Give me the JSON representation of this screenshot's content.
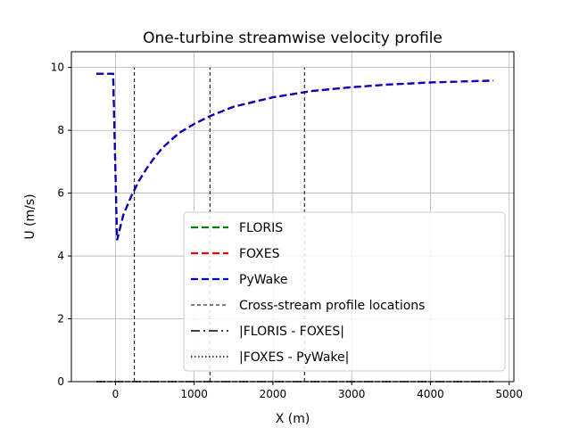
{
  "chart_data": {
    "type": "line",
    "title": "One-turbine streamwise velocity profile",
    "xlabel": "X (m)",
    "ylabel": "U (m/s)",
    "xlim": [
      -560,
      5060
    ],
    "ylim": [
      0,
      10.5
    ],
    "xticks": [
      0,
      1000,
      2000,
      3000,
      4000,
      5000
    ],
    "yticks": [
      0,
      2,
      4,
      6,
      8,
      10
    ],
    "grid": true,
    "legend_position": "lower-right",
    "series": [
      {
        "name": "FLORIS",
        "color": "#008000",
        "dash": "dashed",
        "x": [
          -240,
          -30,
          20,
          100,
          200,
          300,
          400,
          500,
          600,
          800,
          1000,
          1200,
          1500,
          2000,
          2500,
          3000,
          3500,
          4000,
          4500,
          4800
        ],
        "y": [
          9.8,
          9.8,
          4.5,
          5.3,
          5.9,
          6.4,
          6.8,
          7.15,
          7.45,
          7.9,
          8.2,
          8.45,
          8.75,
          9.05,
          9.25,
          9.37,
          9.46,
          9.52,
          9.56,
          9.58
        ]
      },
      {
        "name": "FOXES",
        "color": "#ff0000",
        "dash": "dashed",
        "x": [
          -240,
          -30,
          20,
          100,
          200,
          300,
          400,
          500,
          600,
          800,
          1000,
          1200,
          1500,
          2000,
          2500,
          3000,
          3500,
          4000,
          4500,
          4800
        ],
        "y": [
          9.8,
          9.8,
          4.5,
          5.3,
          5.9,
          6.4,
          6.8,
          7.15,
          7.45,
          7.9,
          8.2,
          8.45,
          8.75,
          9.05,
          9.25,
          9.37,
          9.46,
          9.52,
          9.56,
          9.58
        ]
      },
      {
        "name": "PyWake",
        "color": "#0000cc",
        "dash": "dashed",
        "x": [
          -240,
          -30,
          20,
          100,
          200,
          300,
          400,
          500,
          600,
          800,
          1000,
          1200,
          1500,
          2000,
          2500,
          3000,
          3500,
          4000,
          4500,
          4800
        ],
        "y": [
          9.8,
          9.8,
          4.5,
          5.3,
          5.9,
          6.4,
          6.8,
          7.15,
          7.45,
          7.9,
          8.2,
          8.45,
          8.75,
          9.05,
          9.25,
          9.37,
          9.46,
          9.52,
          9.56,
          9.58
        ]
      },
      {
        "name": "|FLORIS - FOXES|",
        "color": "#000000",
        "dash": "dashdot",
        "x": [
          -240,
          4800
        ],
        "y": [
          0,
          0
        ]
      },
      {
        "name": "|FOXES - PyWake|",
        "color": "#000000",
        "dash": "dotted",
        "x": [
          -240,
          4800
        ],
        "y": [
          0,
          0
        ]
      }
    ],
    "vlines": {
      "name": "Cross-stream profile locations",
      "color": "#000000",
      "dash": "dashed",
      "x": [
        240,
        1200,
        2400
      ],
      "ymin": 0,
      "ymax": 10
    },
    "legend": [
      {
        "label": "FLORIS",
        "color": "#008000",
        "dash": "dashed"
      },
      {
        "label": "FOXES",
        "color": "#ff0000",
        "dash": "dashed"
      },
      {
        "label": "PyWake",
        "color": "#0000cc",
        "dash": "dashed"
      },
      {
        "label": "Cross-stream profile locations",
        "color": "#000000",
        "dash": "thin-dashed"
      },
      {
        "label": "|FLORIS - FOXES|",
        "color": "#000000",
        "dash": "dashdot"
      },
      {
        "label": "|FOXES - PyWake|",
        "color": "#000000",
        "dash": "dotted"
      }
    ]
  }
}
